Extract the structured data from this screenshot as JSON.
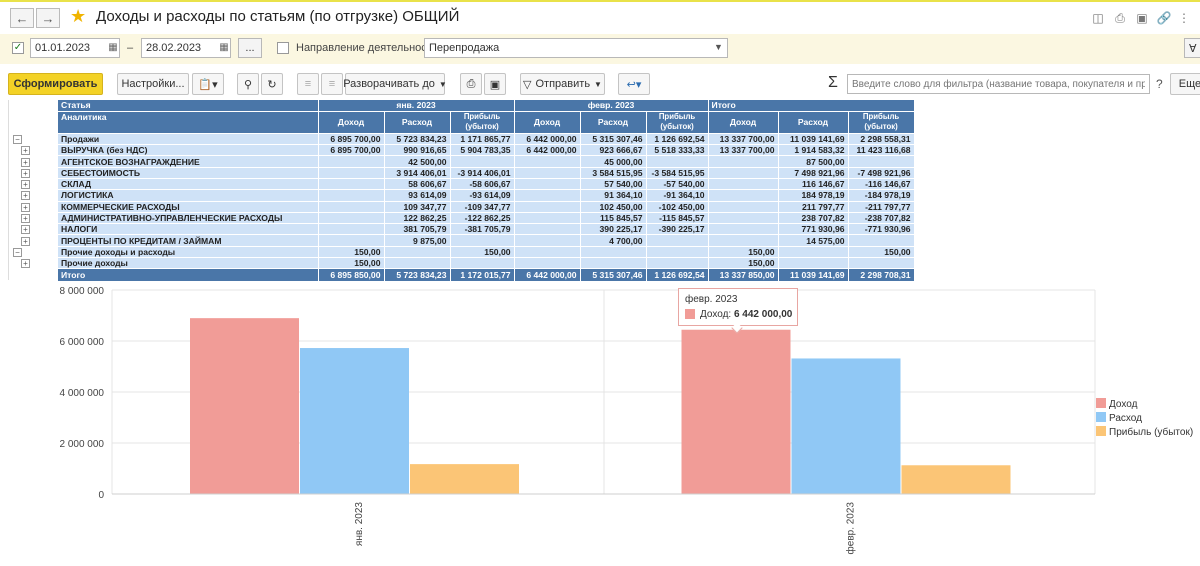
{
  "window": {
    "title": "Доходы и расходы по статьям (по отгрузке) ОБЩИЙ",
    "back_icon": "arrow-left-icon",
    "forward_icon": "arrow-right-icon",
    "favorite_icon": "star-icon"
  },
  "filters": {
    "date_from": "01.01.2023",
    "date_to": "28.02.2023",
    "date_sep": "–",
    "period_button": "...",
    "direction_label": "Направление деятельности:",
    "direction_value": "Перепродажа"
  },
  "toolbar": {
    "generate": "Сформировать",
    "settings": "Настройки...",
    "expand": "Разворачивать до",
    "send": "Отправить",
    "sigma": "Σ",
    "search_placeholder": "Введите слово для фильтра (название товара, покупателя и пр.)",
    "help": "?",
    "more": "Еще"
  },
  "table": {
    "col_article": "Статья",
    "col_analytics": "Аналитика",
    "periods": [
      "янв. 2023",
      "февр. 2023",
      "Итого"
    ],
    "sub_headers": [
      "Доход",
      "Расход",
      "Прибыль (убыток)"
    ],
    "rows": [
      {
        "label": "Продажи",
        "level": 0,
        "marker": "−",
        "values": [
          "6 895 700,00",
          "5 723 834,23",
          "1 171 865,77",
          "6 442 000,00",
          "5 315 307,46",
          "1 126 692,54",
          "13 337 700,00",
          "11 039 141,69",
          "2 298 558,31"
        ]
      },
      {
        "label": "ВЫРУЧКА (без НДС)",
        "level": 1,
        "marker": "+",
        "values": [
          "6 895 700,00",
          "990 916,65",
          "5 904 783,35",
          "6 442 000,00",
          "923 666,67",
          "5 518 333,33",
          "13 337 700,00",
          "1 914 583,32",
          "11 423 116,68"
        ]
      },
      {
        "label": "АГЕНТСКОЕ ВОЗНАГРАЖДЕНИЕ",
        "level": 1,
        "marker": "+",
        "values": [
          "",
          "42 500,00",
          "",
          "",
          "45 000,00",
          "",
          "",
          "87 500,00",
          ""
        ]
      },
      {
        "label": "СЕБЕСТОИМОСТЬ",
        "level": 1,
        "marker": "+",
        "values": [
          "",
          "3 914 406,01",
          "-3 914 406,01",
          "",
          "3 584 515,95",
          "-3 584 515,95",
          "",
          "7 498 921,96",
          "-7 498 921,96"
        ]
      },
      {
        "label": "СКЛАД",
        "level": 1,
        "marker": "+",
        "values": [
          "",
          "58 606,67",
          "-58 606,67",
          "",
          "57 540,00",
          "-57 540,00",
          "",
          "116 146,67",
          "-116 146,67"
        ]
      },
      {
        "label": "ЛОГИСТИКА",
        "level": 1,
        "marker": "+",
        "values": [
          "",
          "93 614,09",
          "-93 614,09",
          "",
          "91 364,10",
          "-91 364,10",
          "",
          "184 978,19",
          "-184 978,19"
        ]
      },
      {
        "label": "КОММЕРЧЕСКИЕ РАСХОДЫ",
        "level": 1,
        "marker": "+",
        "values": [
          "",
          "109 347,77",
          "-109 347,77",
          "",
          "102 450,00",
          "-102 450,00",
          "",
          "211 797,77",
          "-211 797,77"
        ]
      },
      {
        "label": "АДМИНИСТРАТИВНО-УПРАВЛЕНЧЕСКИЕ РАСХОДЫ",
        "level": 1,
        "marker": "+",
        "values": [
          "",
          "122 862,25",
          "-122 862,25",
          "",
          "115 845,57",
          "-115 845,57",
          "",
          "238 707,82",
          "-238 707,82"
        ]
      },
      {
        "label": "НАЛОГИ",
        "level": 1,
        "marker": "+",
        "values": [
          "",
          "381 705,79",
          "-381 705,79",
          "",
          "390 225,17",
          "-390 225,17",
          "",
          "771 930,96",
          "-771 930,96"
        ]
      },
      {
        "label": "ПРОЦЕНТЫ ПО КРЕДИТАМ / ЗАЙМАМ",
        "level": 1,
        "marker": "+",
        "values": [
          "",
          "9 875,00",
          "",
          "",
          "4 700,00",
          "",
          "",
          "14 575,00",
          ""
        ]
      },
      {
        "label": "Прочие доходы и расходы",
        "level": 0,
        "marker": "−",
        "values": [
          "150,00",
          "",
          "150,00",
          "",
          "",
          "",
          "150,00",
          "",
          "150,00"
        ]
      },
      {
        "label": "Прочие доходы",
        "level": 1,
        "marker": "+",
        "values": [
          "150,00",
          "",
          "",
          "",
          "",
          "",
          "150,00",
          "",
          ""
        ]
      }
    ],
    "total": {
      "label": "Итого",
      "values": [
        "6 895 850,00",
        "5 723 834,23",
        "1 172 015,77",
        "6 442 000,00",
        "5 315 307,46",
        "1 126 692,54",
        "13 337 850,00",
        "11 039 141,69",
        "2 298 708,31"
      ]
    }
  },
  "chart_data": {
    "type": "bar",
    "categories": [
      "янв. 2023",
      "февр. 2023"
    ],
    "series": [
      {
        "name": "Доход",
        "color": "#f19c97",
        "values": [
          6895850,
          6442000
        ]
      },
      {
        "name": "Расход",
        "color": "#90c8f5",
        "values": [
          5723834.23,
          5315307.46
        ]
      },
      {
        "name": "Прибыль (убыток)",
        "color": "#fbc576",
        "values": [
          1172015.77,
          1126692.54
        ]
      }
    ],
    "yticks": [
      "0",
      "2 000 000",
      "4 000 000",
      "6 000 000",
      "8 000 000"
    ],
    "ylim": [
      0,
      8000000
    ],
    "grid": true,
    "legend": "right"
  },
  "tooltip": {
    "title": "февр. 2023",
    "label": "Доход:",
    "value": "6 442 000,00"
  }
}
